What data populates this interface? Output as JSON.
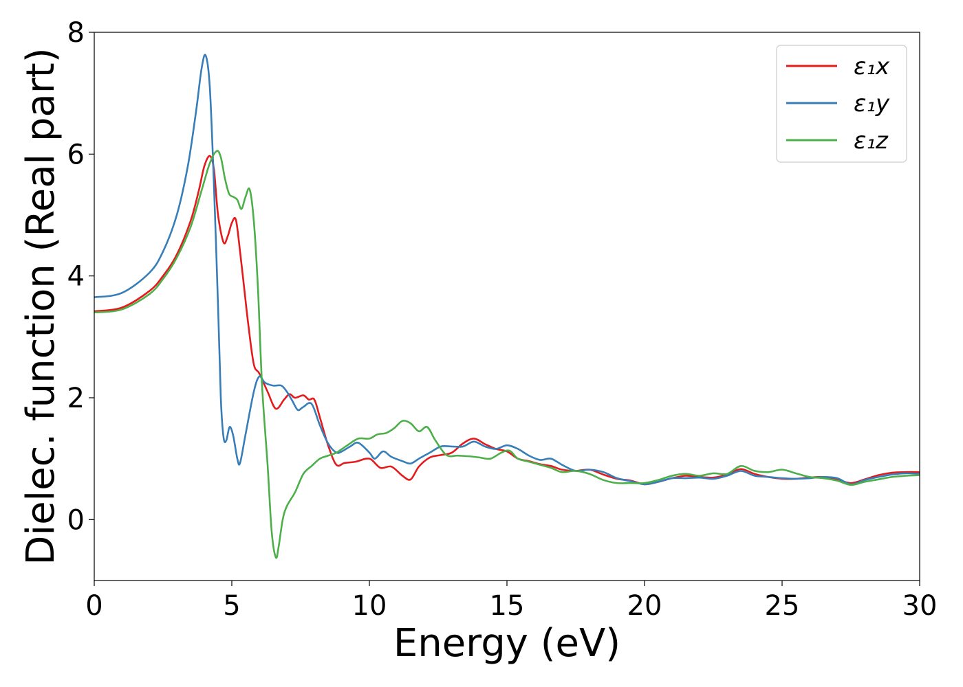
{
  "chart_data": {
    "type": "line",
    "xlabel": "Energy (eV)",
    "ylabel": "Dielec. function (Real part)",
    "xlim": [
      0,
      30
    ],
    "ylim": [
      -1,
      8
    ],
    "xticks": [
      "0",
      "5",
      "10",
      "15",
      "20",
      "25",
      "30"
    ],
    "yticks": [
      "0",
      "2",
      "4",
      "6",
      "8"
    ],
    "grid": false,
    "legend_position": "top-right",
    "series": [
      {
        "name": "ε₁x",
        "color": "#e41a1c",
        "x": [
          0,
          1,
          2,
          2.5,
          3,
          3.5,
          3.8,
          4.0,
          4.2,
          4.35,
          4.5,
          4.7,
          4.85,
          5.0,
          5.15,
          5.3,
          5.45,
          5.6,
          5.8,
          6.0,
          6.3,
          6.6,
          6.9,
          7.1,
          7.3,
          7.6,
          7.8,
          8.0,
          8.2,
          8.5,
          8.8,
          9.1,
          9.5,
          10.0,
          10.4,
          10.8,
          11.2,
          11.5,
          11.8,
          12.2,
          12.6,
          13.0,
          13.4,
          13.8,
          14.2,
          14.6,
          15.0,
          15.4,
          15.8,
          16.2,
          16.6,
          17.0,
          17.5,
          18.0,
          18.5,
          19.0,
          19.5,
          20.0,
          20.5,
          21.0,
          21.5,
          22.0,
          22.5,
          23.0,
          23.5,
          24.0,
          24.5,
          25.0,
          25.5,
          26.0,
          26.5,
          27.0,
          27.5,
          28.0,
          28.5,
          29.0,
          29.5,
          30.0
        ],
        "y": [
          3.42,
          3.48,
          3.75,
          4.0,
          4.35,
          4.9,
          5.4,
          5.8,
          5.97,
          5.75,
          5.0,
          4.55,
          4.65,
          4.87,
          4.92,
          4.4,
          3.8,
          3.2,
          2.55,
          2.4,
          2.1,
          1.82,
          1.97,
          2.06,
          2.0,
          2.04,
          1.97,
          1.97,
          1.68,
          1.22,
          0.9,
          0.93,
          0.95,
          1.0,
          0.85,
          0.87,
          0.72,
          0.66,
          0.87,
          1.02,
          1.06,
          1.1,
          1.25,
          1.33,
          1.24,
          1.16,
          1.12,
          1.0,
          0.96,
          0.91,
          0.88,
          0.82,
          0.8,
          0.82,
          0.74,
          0.67,
          0.64,
          0.58,
          0.62,
          0.68,
          0.72,
          0.7,
          0.69,
          0.74,
          0.83,
          0.75,
          0.7,
          0.67,
          0.67,
          0.69,
          0.7,
          0.66,
          0.6,
          0.66,
          0.73,
          0.77,
          0.78,
          0.78
        ]
      },
      {
        "name": "ε₁y",
        "color": "#377eb8",
        "x": [
          0,
          1,
          2,
          2.5,
          3,
          3.4,
          3.7,
          3.9,
          4.05,
          4.2,
          4.35,
          4.5,
          4.6,
          4.7,
          4.8,
          4.92,
          5.05,
          5.2,
          5.3,
          5.5,
          5.8,
          6.0,
          6.2,
          6.5,
          6.8,
          7.0,
          7.2,
          7.4,
          7.6,
          7.9,
          8.2,
          8.5,
          8.8,
          9.0,
          9.3,
          9.6,
          10.0,
          10.2,
          10.5,
          10.8,
          11.2,
          11.5,
          11.8,
          12.2,
          12.6,
          13.0,
          13.4,
          13.8,
          14.2,
          14.6,
          15.0,
          15.4,
          15.8,
          16.2,
          16.6,
          17.0,
          17.5,
          18.0,
          18.5,
          19.0,
          19.5,
          20.0,
          20.5,
          21.0,
          21.5,
          22.0,
          22.5,
          23.0,
          23.5,
          24.0,
          24.5,
          25.0,
          25.5,
          26.0,
          26.5,
          27.0,
          27.5,
          28.0,
          28.5,
          29.0,
          29.5,
          30.0
        ],
        "y": [
          3.65,
          3.72,
          4.05,
          4.4,
          5.0,
          5.8,
          6.7,
          7.4,
          7.62,
          7.1,
          5.5,
          3.5,
          2.0,
          1.35,
          1.3,
          1.52,
          1.38,
          1.0,
          0.93,
          1.4,
          2.1,
          2.35,
          2.25,
          2.2,
          2.2,
          2.1,
          1.95,
          1.8,
          1.85,
          1.9,
          1.55,
          1.25,
          1.1,
          1.12,
          1.2,
          1.26,
          1.1,
          1.0,
          1.12,
          1.03,
          0.96,
          0.92,
          1.0,
          1.1,
          1.2,
          1.2,
          1.2,
          1.28,
          1.2,
          1.16,
          1.22,
          1.16,
          1.05,
          0.98,
          1.0,
          0.9,
          0.8,
          0.82,
          0.78,
          0.68,
          0.63,
          0.58,
          0.62,
          0.68,
          0.68,
          0.69,
          0.67,
          0.72,
          0.8,
          0.72,
          0.7,
          0.68,
          0.67,
          0.68,
          0.7,
          0.68,
          0.58,
          0.65,
          0.7,
          0.74,
          0.76,
          0.75
        ]
      },
      {
        "name": "ε₁z",
        "color": "#4daf4a",
        "x": [
          0,
          1,
          2,
          2.5,
          3,
          3.5,
          3.9,
          4.2,
          4.45,
          4.6,
          4.75,
          4.9,
          5.05,
          5.2,
          5.35,
          5.5,
          5.65,
          5.8,
          5.95,
          6.1,
          6.3,
          6.45,
          6.6,
          6.7,
          6.85,
          7.0,
          7.3,
          7.6,
          7.9,
          8.2,
          8.5,
          8.8,
          9.2,
          9.6,
          10.0,
          10.3,
          10.6,
          10.9,
          11.2,
          11.5,
          11.8,
          12.1,
          12.4,
          12.8,
          13.2,
          13.6,
          14.0,
          14.4,
          14.8,
          15.1,
          15.4,
          15.8,
          16.2,
          16.6,
          17.0,
          17.5,
          18.0,
          18.5,
          19.0,
          19.5,
          20.0,
          20.5,
          21.0,
          21.5,
          22.0,
          22.5,
          23.0,
          23.5,
          24.0,
          24.5,
          25.0,
          25.5,
          26.0,
          26.5,
          27.0,
          27.5,
          28.0,
          28.5,
          29.0,
          29.5,
          30.0
        ],
        "y": [
          3.4,
          3.45,
          3.7,
          3.95,
          4.3,
          4.8,
          5.4,
          5.85,
          6.05,
          5.95,
          5.6,
          5.35,
          5.3,
          5.25,
          5.1,
          5.3,
          5.42,
          4.9,
          3.8,
          2.2,
          0.9,
          -0.2,
          -0.62,
          -0.45,
          0.0,
          0.22,
          0.45,
          0.75,
          0.88,
          1.0,
          1.05,
          1.1,
          1.22,
          1.33,
          1.33,
          1.4,
          1.42,
          1.5,
          1.62,
          1.58,
          1.45,
          1.52,
          1.3,
          1.06,
          1.05,
          1.04,
          1.02,
          1.0,
          1.1,
          1.13,
          1.0,
          0.95,
          0.9,
          0.85,
          0.78,
          0.8,
          0.75,
          0.65,
          0.6,
          0.6,
          0.6,
          0.65,
          0.72,
          0.75,
          0.72,
          0.76,
          0.75,
          0.88,
          0.8,
          0.78,
          0.82,
          0.76,
          0.7,
          0.68,
          0.64,
          0.57,
          0.62,
          0.66,
          0.7,
          0.72,
          0.73
        ]
      }
    ]
  }
}
